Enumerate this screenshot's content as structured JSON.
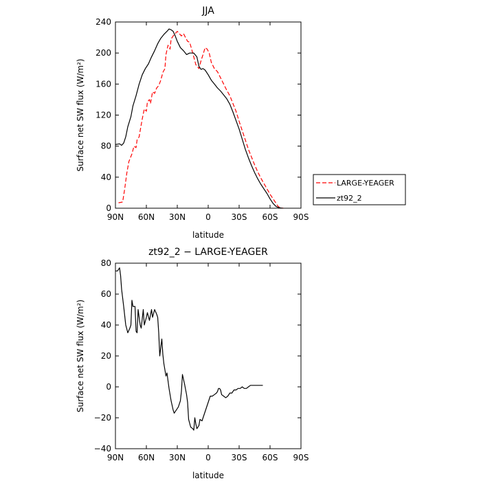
{
  "chart_data": [
    {
      "type": "line",
      "title": "JJA",
      "xlabel": "latitude",
      "ylabel": "Surface net SW flux (W/m²)",
      "xlim": [
        -90,
        90
      ],
      "ylim": [
        0,
        240
      ],
      "x_ticks": [
        -90,
        -60,
        -30,
        0,
        30,
        60,
        90
      ],
      "x_tick_labels": [
        "90N",
        "60N",
        "30N",
        "0",
        "30S",
        "60S",
        "90S"
      ],
      "y_ticks": [
        0,
        40,
        80,
        120,
        160,
        200,
        240
      ],
      "y_tick_labels": [
        "0",
        "40",
        "80",
        "120",
        "160",
        "200",
        "240"
      ],
      "legend": "outside-right",
      "series": [
        {
          "name": "LARGE-YEAGER",
          "color": "#ff0000",
          "dash": "dashed",
          "points": [
            [
              -87,
              7
            ],
            [
              -83,
              8
            ],
            [
              -81,
              25
            ],
            [
              -79,
              45
            ],
            [
              -77,
              60
            ],
            [
              -74,
              70
            ],
            [
              -72,
              80
            ],
            [
              -70,
              78
            ],
            [
              -69,
              88
            ],
            [
              -67,
              92
            ],
            [
              -66,
              100
            ],
            [
              -64,
              115
            ],
            [
              -62,
              128
            ],
            [
              -60,
              125
            ],
            [
              -59,
              137
            ],
            [
              -57,
              140
            ],
            [
              -56,
              135
            ],
            [
              -54,
              150
            ],
            [
              -52,
              148
            ],
            [
              -50,
              155
            ],
            [
              -48,
              158
            ],
            [
              -46,
              165
            ],
            [
              -44,
              175
            ],
            [
              -42,
              180
            ],
            [
              -41,
              198
            ],
            [
              -39,
              210
            ],
            [
              -37,
              205
            ],
            [
              -36,
              218
            ],
            [
              -34,
              222
            ],
            [
              -32,
              225
            ],
            [
              -30,
              228
            ],
            [
              -28,
              225
            ],
            [
              -26,
              222
            ],
            [
              -24,
              225
            ],
            [
              -22,
              220
            ],
            [
              -20,
              215
            ],
            [
              -18,
              214
            ],
            [
              -15,
              200
            ],
            [
              -12,
              185
            ],
            [
              -9,
              180
            ],
            [
              -7,
              190
            ],
            [
              -5,
              198
            ],
            [
              -3,
              207
            ],
            [
              -1,
              205
            ],
            [
              1,
              200
            ],
            [
              3,
              188
            ],
            [
              6,
              180
            ],
            [
              9,
              176
            ],
            [
              12,
              168
            ],
            [
              15,
              160
            ],
            [
              18,
              152
            ],
            [
              21,
              145
            ],
            [
              24,
              135
            ],
            [
              27,
              125
            ],
            [
              30,
              112
            ],
            [
              33,
              100
            ],
            [
              36,
              88
            ],
            [
              39,
              76
            ],
            [
              42,
              66
            ],
            [
              45,
              56
            ],
            [
              48,
              47
            ],
            [
              51,
              39
            ],
            [
              54,
              32
            ],
            [
              57,
              25
            ],
            [
              60,
              18
            ],
            [
              63,
              12
            ],
            [
              66,
              6
            ],
            [
              68,
              2
            ],
            [
              70,
              0.5
            ],
            [
              73,
              0
            ]
          ]
        },
        {
          "name": "zt92_2",
          "color": "#000000",
          "dash": "solid",
          "points": [
            [
              -90,
              82
            ],
            [
              -86,
              83
            ],
            [
              -84,
              81
            ],
            [
              -82,
              84
            ],
            [
              -80,
              92
            ],
            [
              -78,
              105
            ],
            [
              -75,
              118
            ],
            [
              -73,
              132
            ],
            [
              -70,
              145
            ],
            [
              -67,
              160
            ],
            [
              -64,
              172
            ],
            [
              -61,
              180
            ],
            [
              -58,
              186
            ],
            [
              -55,
              195
            ],
            [
              -52,
              203
            ],
            [
              -49,
              212
            ],
            [
              -46,
              219
            ],
            [
              -43,
              224
            ],
            [
              -40,
              228
            ],
            [
              -38,
              231
            ],
            [
              -36,
              230
            ],
            [
              -34,
              228
            ],
            [
              -32,
              222
            ],
            [
              -30,
              215
            ],
            [
              -27,
              207
            ],
            [
              -24,
              203
            ],
            [
              -21,
              198
            ],
            [
              -18,
              200
            ],
            [
              -14,
              200
            ],
            [
              -11,
              195
            ],
            [
              -9,
              183
            ],
            [
              -7,
              179
            ],
            [
              -5,
              180
            ],
            [
              -3,
              178
            ],
            [
              0,
              172
            ],
            [
              3,
              165
            ],
            [
              6,
              160
            ],
            [
              9,
              155
            ],
            [
              12,
              151
            ],
            [
              15,
              146
            ],
            [
              18,
              141
            ],
            [
              21,
              134
            ],
            [
              24,
              124
            ],
            [
              27,
              113
            ],
            [
              30,
              102
            ],
            [
              33,
              89
            ],
            [
              36,
              76
            ],
            [
              39,
              65
            ],
            [
              42,
              55
            ],
            [
              45,
              46
            ],
            [
              48,
              38
            ],
            [
              51,
              31
            ],
            [
              54,
              25
            ],
            [
              57,
              19
            ],
            [
              60,
              12
            ],
            [
              63,
              6
            ],
            [
              66,
              2
            ],
            [
              69,
              0.5
            ],
            [
              72,
              0
            ]
          ]
        }
      ]
    },
    {
      "type": "line",
      "title": "zt92_2 − LARGE-YEAGER",
      "xlabel": "latitude",
      "ylabel": "Surface net SW flux (W/m²)",
      "xlim": [
        -90,
        90
      ],
      "ylim": [
        -40,
        80
      ],
      "x_ticks": [
        -90,
        -60,
        -30,
        0,
        30,
        60,
        90
      ],
      "x_tick_labels": [
        "90N",
        "60N",
        "30N",
        "0",
        "30S",
        "60S",
        "90S"
      ],
      "y_ticks": [
        -40,
        -20,
        0,
        20,
        40,
        60,
        80
      ],
      "y_tick_labels": [
        "−40",
        "−20",
        "0",
        "20",
        "40",
        "60",
        "80"
      ],
      "series": [
        {
          "color": "#000000",
          "dash": "solid",
          "points": [
            [
              -90,
              75
            ],
            [
              -88,
              75
            ],
            [
              -86,
              77
            ],
            [
              -85,
              72
            ],
            [
              -84,
              63
            ],
            [
              -82,
              52
            ],
            [
              -80,
              40
            ],
            [
              -78,
              35
            ],
            [
              -76,
              38
            ],
            [
              -75,
              40
            ],
            [
              -74,
              56
            ],
            [
              -73,
              52
            ],
            [
              -71,
              52
            ],
            [
              -70,
              36
            ],
            [
              -69,
              35
            ],
            [
              -68,
              50
            ],
            [
              -66,
              40
            ],
            [
              -65,
              38
            ],
            [
              -63,
              50
            ],
            [
              -62,
              40
            ],
            [
              -60,
              45
            ],
            [
              -59,
              48
            ],
            [
              -57,
              43
            ],
            [
              -55,
              50
            ],
            [
              -54,
              45
            ],
            [
              -52,
              50
            ],
            [
              -50,
              47
            ],
            [
              -49,
              45
            ],
            [
              -48,
              35
            ],
            [
              -47,
              20
            ],
            [
              -45,
              31
            ],
            [
              -44,
              21
            ],
            [
              -43,
              15
            ],
            [
              -41,
              7
            ],
            [
              -40,
              9
            ],
            [
              -38,
              -1
            ],
            [
              -36,
              -9
            ],
            [
              -34,
              -15
            ],
            [
              -33,
              -17
            ],
            [
              -31,
              -15
            ],
            [
              -29,
              -13
            ],
            [
              -27,
              -9
            ],
            [
              -26,
              -3
            ],
            [
              -25,
              8
            ],
            [
              -24,
              5
            ],
            [
              -23,
              2
            ],
            [
              -21,
              -5
            ],
            [
              -20,
              -10
            ],
            [
              -19,
              -21
            ],
            [
              -17,
              -26
            ],
            [
              -15,
              -27
            ],
            [
              -14,
              -28
            ],
            [
              -13,
              -20
            ],
            [
              -12,
              -24
            ],
            [
              -11,
              -27
            ],
            [
              -9,
              -25
            ],
            [
              -8,
              -21
            ],
            [
              -6,
              -22
            ],
            [
              -5,
              -20
            ],
            [
              -3,
              -16
            ],
            [
              -1,
              -12
            ],
            [
              1,
              -8
            ],
            [
              2,
              -6
            ],
            [
              4,
              -6
            ],
            [
              6,
              -5
            ],
            [
              8,
              -4
            ],
            [
              9,
              -3
            ],
            [
              10,
              -1
            ],
            [
              11,
              -1
            ],
            [
              12,
              -2
            ],
            [
              13,
              -5
            ],
            [
              15,
              -6
            ],
            [
              17,
              -7
            ],
            [
              19,
              -6
            ],
            [
              21,
              -4
            ],
            [
              23,
              -4
            ],
            [
              25,
              -2
            ],
            [
              27,
              -2
            ],
            [
              29,
              -1
            ],
            [
              31,
              -1
            ],
            [
              33,
              0
            ],
            [
              35,
              -1
            ],
            [
              37,
              -1
            ],
            [
              39,
              0
            ],
            [
              41,
              1
            ],
            [
              43,
              1
            ],
            [
              46,
              1
            ],
            [
              49,
              1
            ],
            [
              53,
              1
            ]
          ]
        }
      ]
    }
  ]
}
